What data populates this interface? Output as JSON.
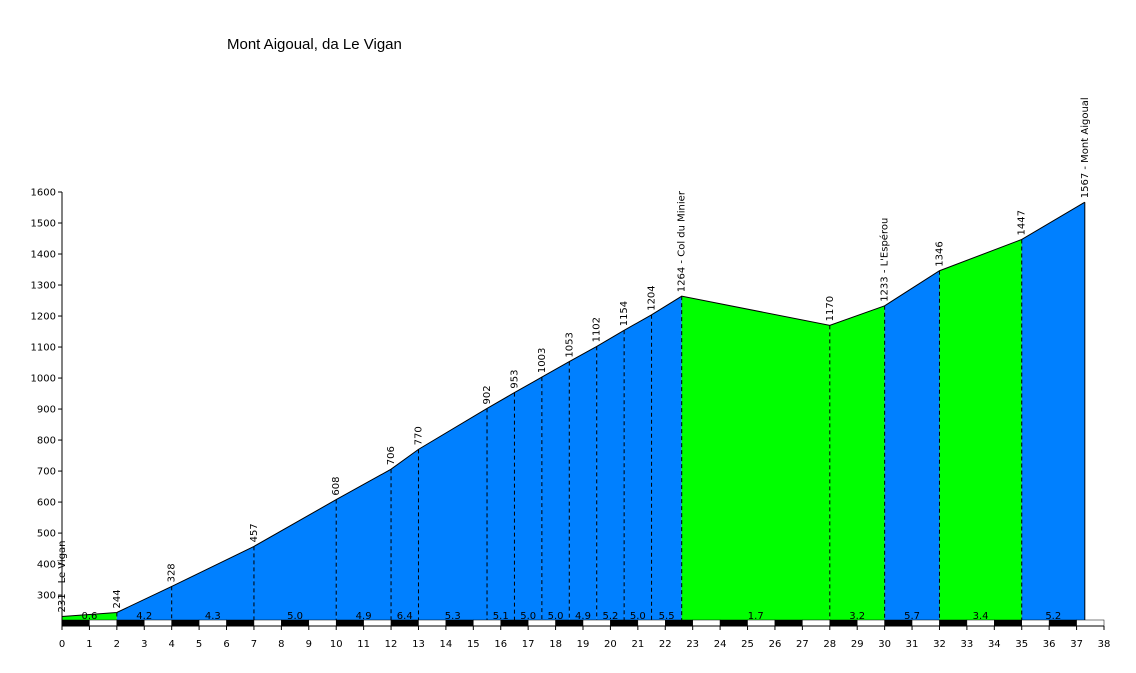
{
  "chart_data": {
    "type": "area",
    "title": "Mont Aigoual, da Le Vigan",
    "xlabel": "",
    "ylabel": "",
    "xlim": [
      0,
      38
    ],
    "ylim": [
      210,
      1600
    ],
    "x_ticks": [
      0,
      1,
      2,
      3,
      4,
      5,
      6,
      7,
      8,
      9,
      10,
      11,
      12,
      13,
      14,
      15,
      16,
      17,
      18,
      19,
      20,
      21,
      22,
      23,
      24,
      25,
      26,
      27,
      28,
      29,
      30,
      31,
      32,
      33,
      34,
      35,
      36,
      37,
      38
    ],
    "y_ticks": [
      300,
      400,
      500,
      600,
      700,
      800,
      900,
      1000,
      1100,
      1200,
      1300,
      1400,
      1500,
      1600
    ],
    "colors": {
      "climb": "#0080ff",
      "flat": "#00ff00",
      "outline": "#000000"
    },
    "segments": [
      {
        "x0": 0.0,
        "x1": 2.0,
        "y0": 231,
        "y1": 244,
        "gradient": "0.6",
        "color": "flat"
      },
      {
        "x0": 2.0,
        "x1": 4.0,
        "y0": 244,
        "y1": 328,
        "gradient": "4.2",
        "color": "climb"
      },
      {
        "x0": 4.0,
        "x1": 7.0,
        "y0": 328,
        "y1": 457,
        "gradient": "4.3",
        "color": "climb"
      },
      {
        "x0": 7.0,
        "x1": 10.0,
        "y0": 457,
        "y1": 608,
        "gradient": "5.0",
        "color": "climb"
      },
      {
        "x0": 10.0,
        "x1": 12.0,
        "y0": 608,
        "y1": 706,
        "gradient": "4.9",
        "color": "climb"
      },
      {
        "x0": 12.0,
        "x1": 13.0,
        "y0": 706,
        "y1": 770,
        "gradient": "6.4",
        "color": "climb"
      },
      {
        "x0": 13.0,
        "x1": 15.5,
        "y0": 770,
        "y1": 902,
        "gradient": "5.3",
        "color": "climb"
      },
      {
        "x0": 15.5,
        "x1": 16.5,
        "y0": 902,
        "y1": 953,
        "gradient": "5.1",
        "color": "climb"
      },
      {
        "x0": 16.5,
        "x1": 17.5,
        "y0": 953,
        "y1": 1003,
        "gradient": "5.0",
        "color": "climb"
      },
      {
        "x0": 17.5,
        "x1": 18.5,
        "y0": 1003,
        "y1": 1053,
        "gradient": "5.0",
        "color": "climb"
      },
      {
        "x0": 18.5,
        "x1": 19.5,
        "y0": 1053,
        "y1": 1102,
        "gradient": "4.9",
        "color": "climb"
      },
      {
        "x0": 19.5,
        "x1": 20.5,
        "y0": 1102,
        "y1": 1154,
        "gradient": "5.2",
        "color": "climb"
      },
      {
        "x0": 20.5,
        "x1": 21.5,
        "y0": 1154,
        "y1": 1204,
        "gradient": "5.0",
        "color": "climb"
      },
      {
        "x0": 21.5,
        "x1": 22.6,
        "y0": 1204,
        "y1": 1264,
        "gradient": "5.5",
        "color": "climb"
      },
      {
        "x0": 22.6,
        "x1": 28.0,
        "y0": 1264,
        "y1": 1170,
        "gradient": "1.7",
        "color": "flat"
      },
      {
        "x0": 28.0,
        "x1": 30.0,
        "y0": 1170,
        "y1": 1233,
        "gradient": "3.2",
        "color": "flat"
      },
      {
        "x0": 30.0,
        "x1": 32.0,
        "y0": 1233,
        "y1": 1346,
        "gradient": "5.7",
        "color": "climb"
      },
      {
        "x0": 32.0,
        "x1": 35.0,
        "y0": 1346,
        "y1": 1447,
        "gradient": "3.4",
        "color": "flat"
      },
      {
        "x0": 35.0,
        "x1": 37.3,
        "y0": 1447,
        "y1": 1567,
        "gradient": "5.2",
        "color": "climb"
      }
    ],
    "point_labels": [
      {
        "x": 0.0,
        "y": 231,
        "text": "231 - Le Vigan"
      },
      {
        "x": 2.0,
        "y": 244,
        "text": "244"
      },
      {
        "x": 4.0,
        "y": 328,
        "text": "328"
      },
      {
        "x": 7.0,
        "y": 457,
        "text": "457"
      },
      {
        "x": 10.0,
        "y": 608,
        "text": "608"
      },
      {
        "x": 12.0,
        "y": 706,
        "text": "706"
      },
      {
        "x": 13.0,
        "y": 770,
        "text": "770"
      },
      {
        "x": 15.5,
        "y": 902,
        "text": "902"
      },
      {
        "x": 16.5,
        "y": 953,
        "text": "953"
      },
      {
        "x": 17.5,
        "y": 1003,
        "text": "1003"
      },
      {
        "x": 18.5,
        "y": 1053,
        "text": "1053"
      },
      {
        "x": 19.5,
        "y": 1102,
        "text": "1102"
      },
      {
        "x": 20.5,
        "y": 1154,
        "text": "1154"
      },
      {
        "x": 21.5,
        "y": 1204,
        "text": "1204"
      },
      {
        "x": 22.6,
        "y": 1264,
        "text": "1264 - Col du Minier"
      },
      {
        "x": 28.0,
        "y": 1170,
        "text": "1170"
      },
      {
        "x": 30.0,
        "y": 1233,
        "text": "1233 - L'Espérou"
      },
      {
        "x": 32.0,
        "y": 1346,
        "text": "1346"
      },
      {
        "x": 35.0,
        "y": 1447,
        "text": "1447"
      },
      {
        "x": 37.3,
        "y": 1567,
        "text": "1567 - Mont Aigoual"
      }
    ]
  }
}
